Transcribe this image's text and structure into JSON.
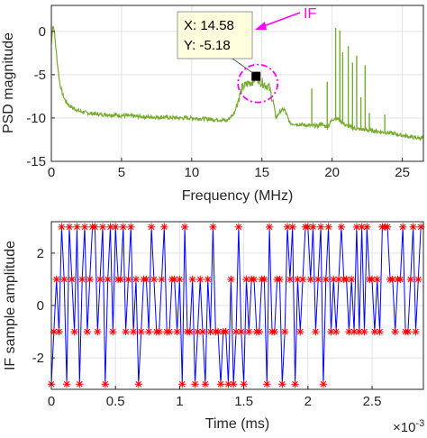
{
  "chart_data": [
    {
      "type": "line",
      "xlabel": "Frequency (MHz)",
      "ylabel": "PSD magnitude",
      "xlim": [
        0,
        26.5
      ],
      "ylim": [
        -15,
        3
      ],
      "xticks": [
        "0",
        "5",
        "10",
        "15",
        "20",
        "25"
      ],
      "yticks": [
        "0",
        "-5",
        "-10",
        "-15"
      ],
      "grid": true,
      "line_color": "#77ac30",
      "datatip": {
        "x_text": "X: 14.58",
        "y_text": "Y: -5.18",
        "x": 14.58,
        "y": -5.18
      },
      "annotation": {
        "text": "IF",
        "color": "#ff00ff"
      },
      "series": [
        {
          "x": [
            0,
            0.1,
            0.2,
            0.3,
            0.45,
            0.6,
            0.8,
            1.0,
            1.3,
            1.6,
            2.0,
            2.5,
            3,
            3.5,
            4,
            5,
            6,
            7,
            8,
            9,
            10,
            11,
            12,
            12.5,
            13,
            13.3,
            13.6,
            14.0,
            14.3,
            14.6,
            14.9,
            15.2,
            15.5,
            15.8,
            16.0,
            16.3,
            16.6,
            17,
            18,
            18.5,
            19,
            19.2,
            19.4,
            19.7,
            20,
            20.2,
            20.4,
            20.6,
            20.8,
            21,
            21.2,
            21.4,
            21.6,
            22,
            23,
            24,
            25,
            26,
            26.5
          ],
          "y": [
            -1.5,
            0.7,
            0.3,
            -1.5,
            -4.0,
            -6.0,
            -7.3,
            -8.0,
            -8.6,
            -8.9,
            -9.2,
            -9.4,
            -9.5,
            -9.6,
            -9.6,
            -9.7,
            -9.8,
            -9.9,
            -9.9,
            -10.0,
            -10.0,
            -10.1,
            -10.2,
            -10.3,
            -9.5,
            -8.0,
            -6.5,
            -6.0,
            -5.8,
            -5.3,
            -5.8,
            -6.1,
            -6.4,
            -8.2,
            -10.0,
            -9.2,
            -9.0,
            -10.6,
            -10.8,
            -10.9,
            -10.9,
            -10.6,
            -10.9,
            -11.0,
            -10.2,
            -10.0,
            -10.1,
            -10.3,
            -10.6,
            -10.9,
            -11.0,
            -11.1,
            -11.2,
            -11.3,
            -11.5,
            -11.7,
            -12.0,
            -12.3,
            -12.3
          ]
        }
      ],
      "spikes": [
        {
          "x": 18.55,
          "y": -6.6
        },
        {
          "x": 19.65,
          "y": -5.8
        },
        {
          "x": 20.25,
          "y": 0.4
        },
        {
          "x": 20.55,
          "y": 0.1
        },
        {
          "x": 20.75,
          "y": -2.4
        },
        {
          "x": 21.15,
          "y": -1.7
        },
        {
          "x": 21.45,
          "y": -3.6
        },
        {
          "x": 21.75,
          "y": -2.8
        },
        {
          "x": 22.05,
          "y": -7.6
        },
        {
          "x": 22.35,
          "y": -3.9
        },
        {
          "x": 22.65,
          "y": -9.4
        },
        {
          "x": 23.75,
          "y": -9.6
        }
      ]
    },
    {
      "type": "line",
      "xlabel": "Time (ms)",
      "ylabel": "IF sample amplitude",
      "xlim": [
        0,
        0.0029
      ],
      "ylim": [
        -3.2,
        3.2
      ],
      "xticks": [
        "0",
        "0.5",
        "1",
        "1.5",
        "2",
        "2.5"
      ],
      "yticks": [
        "2",
        "0",
        "-2"
      ],
      "x_multiplier": "×10",
      "x_multiplier_exp": "-3",
      "grid": true,
      "line_color": "#0000ff",
      "marker_color": "#ff0000",
      "marker": "asterisk",
      "series": [
        {
          "x_start": 0,
          "x_step": 2e-05,
          "values": [
            -3,
            -1,
            1,
            -1,
            3,
            1,
            -3,
            3,
            1,
            -1,
            3,
            -3,
            1,
            3,
            -1,
            1,
            3,
            3,
            -1,
            1,
            3,
            -3,
            1,
            3,
            -1,
            3,
            1,
            1,
            3,
            -1,
            1,
            3,
            -1,
            1,
            -3,
            -1,
            1,
            1,
            -1,
            3,
            1,
            -1,
            -1,
            1,
            3,
            -1,
            -1,
            1,
            1,
            -1,
            1,
            -3,
            3,
            -1,
            -1,
            1,
            -3,
            -1,
            1,
            -1,
            -3,
            1,
            -1,
            3,
            -1,
            -1,
            -3,
            -1,
            -1,
            -3,
            1,
            -3,
            -1,
            3,
            -1,
            -3,
            1,
            -1,
            1,
            1,
            -1,
            -1,
            1,
            1,
            -3,
            3,
            -1,
            -1,
            1,
            1,
            -3,
            -1,
            3,
            1,
            3,
            -3,
            1,
            -1,
            1,
            3,
            3,
            1,
            3,
            -1,
            1,
            3,
            -3,
            1,
            3,
            -1,
            1,
            -1,
            1,
            3,
            1,
            1,
            -1,
            1,
            -1,
            3,
            -1,
            3,
            -1,
            3,
            1,
            1,
            -1,
            1,
            -1,
            3,
            3,
            3,
            1,
            1,
            -1,
            1,
            1,
            3,
            -1,
            -1,
            1,
            3,
            -1,
            1,
            3
          ]
        }
      ]
    }
  ]
}
